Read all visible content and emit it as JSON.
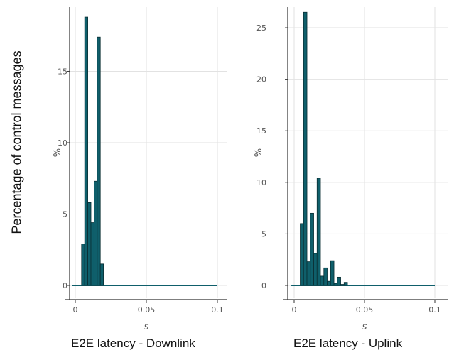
{
  "figure": {
    "ylabel": "Percentage of control messages",
    "captions": [
      "E2E latency - Downlink",
      "E2E latency - Uplink"
    ]
  },
  "style": {
    "bar_fill": "#0f5f6b",
    "bar_stroke": "#0a2e33",
    "grid": "#e2e2e2",
    "axis": "#333333",
    "text": "#555555"
  },
  "chart_data": [
    {
      "type": "bar",
      "title": "",
      "xlabel": "s",
      "ylabel": "%",
      "xlim": [
        0,
        0.1
      ],
      "ylim": [
        0,
        19.5
      ],
      "xticks": [
        0,
        0.05,
        0.1
      ],
      "xtick_labels": [
        "0",
        "0.05",
        "0.1"
      ],
      "yticks": [
        0,
        5,
        10,
        15
      ],
      "ytick_labels": [
        "0",
        "5",
        "10",
        "15"
      ],
      "bin_width": 0.0022,
      "grid": true,
      "x": [
        0.0055,
        0.0077,
        0.0099,
        0.0121,
        0.0143,
        0.0165,
        0.0187
      ],
      "values": [
        2.9,
        18.8,
        5.8,
        4.4,
        7.3,
        17.4,
        1.5
      ],
      "baseline_range": [
        -0.002,
        0.1
      ]
    },
    {
      "type": "bar",
      "title": "",
      "xlabel": "s",
      "ylabel": "%",
      "xlim": [
        0,
        0.1
      ],
      "ylim": [
        0,
        27
      ],
      "xticks": [
        0,
        0.05,
        0.1
      ],
      "xtick_labels": [
        "0",
        "0.05",
        "0.1"
      ],
      "yticks": [
        0,
        5,
        10,
        15,
        20,
        25
      ],
      "ytick_labels": [
        "0",
        "5",
        "10",
        "15",
        "20",
        "25"
      ],
      "bin_width": 0.0024,
      "grid": true,
      "x": [
        0.0055,
        0.0079,
        0.0103,
        0.0127,
        0.0151,
        0.0175,
        0.0199,
        0.0223,
        0.0247,
        0.0271,
        0.0295,
        0.0319,
        0.0343,
        0.0367
      ],
      "values": [
        6.0,
        26.5,
        2.3,
        7.0,
        3.1,
        10.4,
        0.9,
        1.7,
        0.4,
        2.4,
        0.2,
        0.8,
        0.1,
        0.3
      ],
      "baseline_range": [
        -0.002,
        0.1
      ]
    }
  ]
}
